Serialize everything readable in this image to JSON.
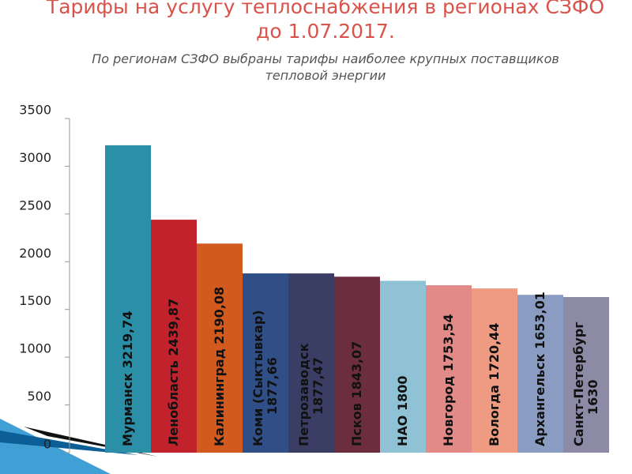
{
  "chart_data": {
    "type": "bar",
    "title": [
      "Тарифы на услугу теплоснабжения в регионах СЗФО",
      "до 1.07.2017."
    ],
    "subtitle": [
      "По регионам СЗФО выбраны тарифы наиболее крупных поставщиков",
      "тепловой энергии"
    ],
    "categories": [
      "Мурманск",
      "Ленобласть",
      "Калининград",
      "Коми (Сыктывкар)",
      "Петрозаводск",
      "Псков",
      "НАО",
      "Новгород",
      "Вологда",
      "Архангельск",
      "Санкт-Петербург"
    ],
    "values": [
      3219.74,
      2439.87,
      2190.08,
      1877.66,
      1877.47,
      1843.07,
      1800,
      1753.54,
      1720.44,
      1653.01,
      1630
    ],
    "value_labels": [
      "3219,74",
      "2439,87",
      "2190,08",
      "1877,66",
      "1877,47",
      "1843,07",
      "1800",
      "1753,54",
      "1720,44",
      "1653,01",
      "1630"
    ],
    "colors": [
      "#2b8fa7",
      "#c1222c",
      "#d25a1f",
      "#2f4f86",
      "#3b3e64",
      "#6c2e3f",
      "#8fc2d4",
      "#e18a87",
      "#ef9b81",
      "#8a9cc1",
      "#8c8aa4"
    ],
    "ylim": [
      0,
      3500
    ],
    "yticks": [
      0,
      500,
      1000,
      1500,
      2000,
      2500,
      3000,
      3500
    ],
    "grid": false
  }
}
